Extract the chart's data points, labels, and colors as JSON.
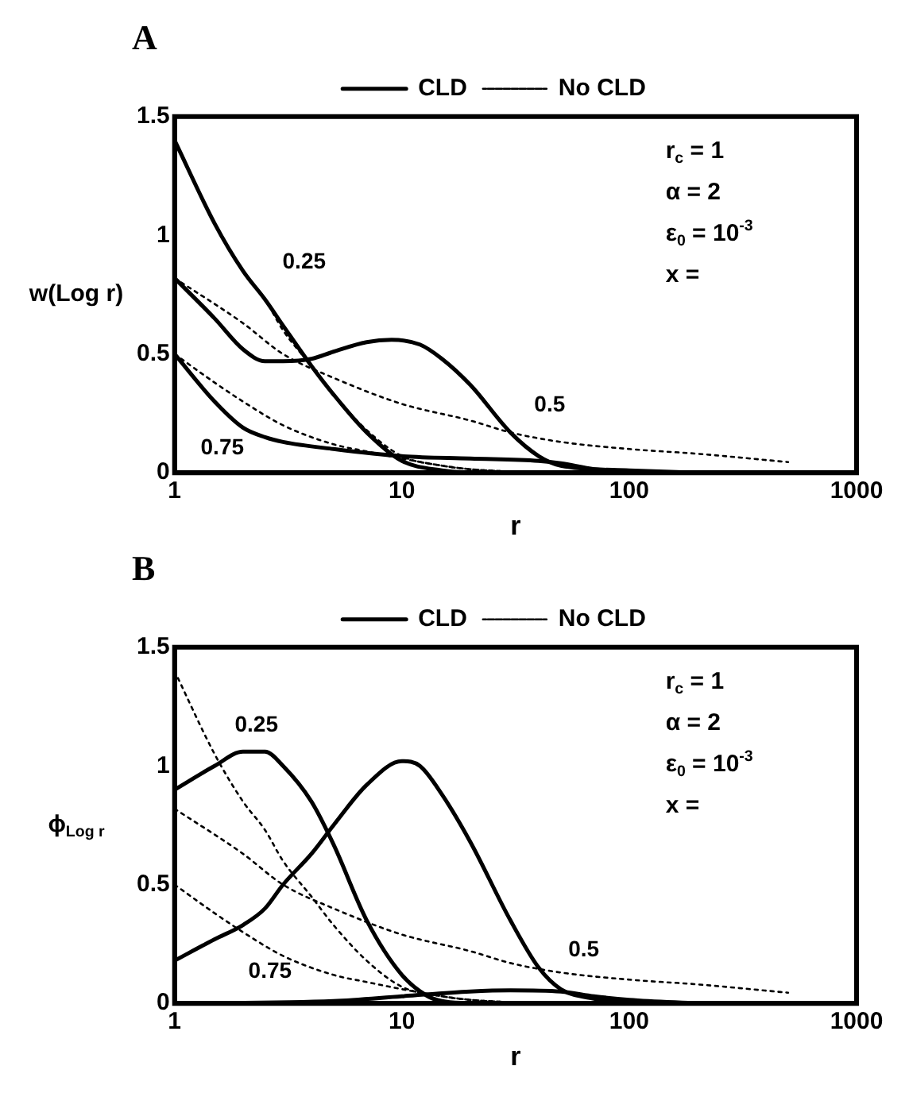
{
  "chart_data": [
    {
      "type": "line",
      "title": "A",
      "xlabel": "r",
      "ylabel": "w(Log r)",
      "log": "x",
      "xlim": [
        1,
        1000
      ],
      "xticks": [
        1,
        10,
        100,
        1000
      ],
      "ylim": [
        0,
        1.5
      ],
      "yticks": [
        0,
        0.5,
        1,
        1.5
      ],
      "grid": false,
      "legend": "top",
      "marker": "none",
      "annotations": [
        "r$_{c}$ = 1",
        "α = 2",
        "ε$_{0}$ = 10$^{-3}$",
        "x =",
        "0.25",
        "0.5",
        "0.75"
      ],
      "series": [
        {
          "name": "CLD",
          "color": "#000000",
          "line_style": "solid",
          "x": [
            1,
            1.5,
            2,
            2.5,
            3,
            4,
            5,
            7,
            10,
            15,
            20
          ],
          "values": [
            1.4,
            1.05,
            0.85,
            0.73,
            0.62,
            0.45,
            0.33,
            0.17,
            0.05,
            0.01,
            0
          ]
        },
        {
          "color": "#000000",
          "line_style": "solid",
          "x": [
            1,
            1.5,
            2,
            2.5,
            3,
            4,
            5,
            7,
            9,
            12,
            15,
            20,
            30,
            40,
            50,
            100,
            200
          ],
          "values": [
            0.82,
            0.65,
            0.52,
            0.47,
            0.47,
            0.48,
            0.51,
            0.55,
            0.56,
            0.54,
            0.48,
            0.37,
            0.17,
            0.07,
            0.03,
            0.01,
            0
          ]
        },
        {
          "color": "#000000",
          "line_style": "solid",
          "x": [
            1,
            1.5,
            2,
            2.5,
            3,
            5,
            10,
            20,
            40,
            50,
            70,
            100,
            200
          ],
          "values": [
            0.5,
            0.3,
            0.19,
            0.15,
            0.13,
            0.1,
            0.07,
            0.06,
            0.05,
            0.04,
            0.015,
            0.005,
            0
          ]
        },
        {
          "name": "No CLD",
          "color": "#000000",
          "line_style": "dotted",
          "x": [
            1,
            1.5,
            2,
            2.5,
            3,
            4,
            5,
            7,
            10,
            15,
            20,
            30,
            50
          ],
          "values": [
            1.4,
            1.05,
            0.85,
            0.73,
            0.6,
            0.45,
            0.33,
            0.18,
            0.07,
            0.03,
            0.015,
            0.005,
            0
          ]
        },
        {
          "color": "#000000",
          "line_style": "dotted",
          "x": [
            1,
            2,
            3,
            5,
            10,
            20,
            30,
            50,
            100,
            200,
            500
          ],
          "values": [
            0.82,
            0.63,
            0.5,
            0.4,
            0.29,
            0.22,
            0.17,
            0.13,
            0.1,
            0.08,
            0.045
          ]
        },
        {
          "color": "#000000",
          "line_style": "dotted",
          "x": [
            1,
            1.5,
            2,
            3,
            5,
            7,
            10,
            15,
            20,
            30
          ],
          "values": [
            0.5,
            0.38,
            0.3,
            0.2,
            0.12,
            0.09,
            0.06,
            0.03,
            0.015,
            0.005
          ]
        }
      ]
    },
    {
      "type": "line",
      "title": "B",
      "xlabel": "r",
      "ylabel": "ϕ$_{Log r}$",
      "log": "x",
      "xlim": [
        1,
        1000
      ],
      "xticks": [
        1,
        10,
        100,
        1000
      ],
      "ylim": [
        0,
        1.5
      ],
      "yticks": [
        0,
        0.5,
        1,
        1.5
      ],
      "grid": false,
      "legend": "top",
      "marker": "none",
      "annotations": [
        "r$_{c}$ = 1",
        "α = 2",
        "ε$_{0}$ = 10$^{-3}$",
        "x =",
        "0.25",
        "0.5",
        "0.75"
      ],
      "series": [
        {
          "name": "CLD",
          "color": "#000000",
          "line_style": "solid",
          "x": [
            1,
            1.5,
            2,
            2.5,
            3,
            4,
            5,
            7,
            10,
            13,
            15,
            20
          ],
          "values": [
            0.9,
            1.0,
            1.06,
            1.06,
            1.0,
            0.85,
            0.67,
            0.35,
            0.12,
            0.03,
            0.01,
            0
          ]
        },
        {
          "color": "#000000",
          "line_style": "solid",
          "x": [
            1,
            1.5,
            2,
            2.5,
            3,
            4,
            5,
            7,
            10,
            12,
            15,
            20,
            30,
            40,
            50,
            70,
            100,
            200
          ],
          "values": [
            0.18,
            0.27,
            0.33,
            0.4,
            0.5,
            0.63,
            0.75,
            0.92,
            1.02,
            1.0,
            0.88,
            0.68,
            0.35,
            0.15,
            0.06,
            0.02,
            0.005,
            0
          ]
        },
        {
          "color": "#000000",
          "line_style": "solid",
          "x": [
            1,
            5,
            10,
            20,
            30,
            50,
            70,
            100,
            200
          ],
          "values": [
            0,
            0.01,
            0.03,
            0.05,
            0.055,
            0.05,
            0.03,
            0.015,
            0
          ]
        },
        {
          "name": "No CLD",
          "color": "#000000",
          "line_style": "dotted",
          "x": [
            1,
            1.5,
            2,
            2.5,
            3,
            4,
            5,
            7,
            10,
            15,
            20,
            30,
            50
          ],
          "values": [
            1.4,
            1.05,
            0.85,
            0.73,
            0.6,
            0.45,
            0.33,
            0.18,
            0.07,
            0.03,
            0.015,
            0.005,
            0
          ]
        },
        {
          "color": "#000000",
          "line_style": "dotted",
          "x": [
            1,
            2,
            3,
            5,
            10,
            20,
            30,
            50,
            100,
            200,
            500
          ],
          "values": [
            0.82,
            0.63,
            0.5,
            0.4,
            0.29,
            0.22,
            0.17,
            0.13,
            0.1,
            0.08,
            0.045
          ]
        },
        {
          "color": "#000000",
          "line_style": "dotted",
          "x": [
            1,
            1.5,
            2,
            3,
            5,
            7,
            10,
            15,
            20,
            30
          ],
          "values": [
            0.5,
            0.38,
            0.3,
            0.2,
            0.12,
            0.09,
            0.06,
            0.03,
            0.015,
            0.005
          ]
        }
      ]
    }
  ]
}
